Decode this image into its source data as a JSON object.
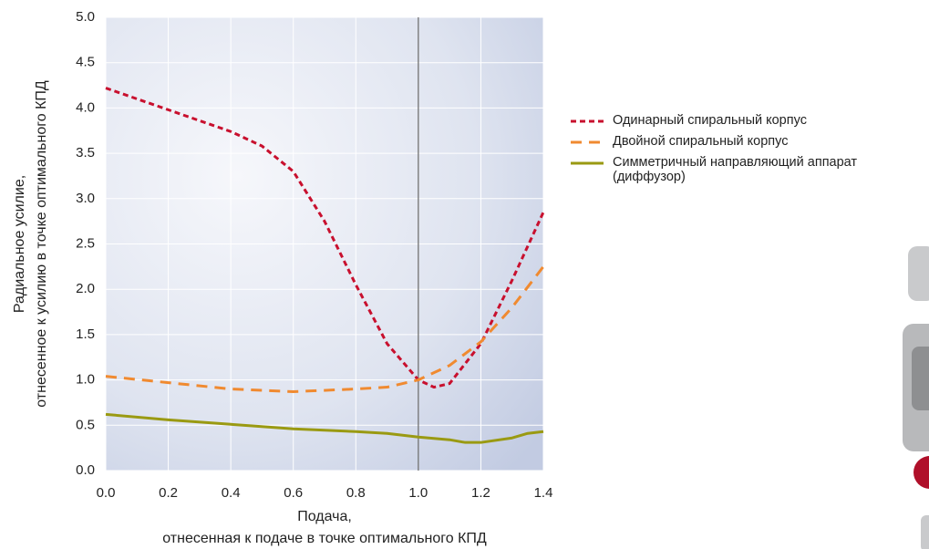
{
  "chart_data": {
    "type": "line",
    "ylabel": [
      "Радиальное усилие,",
      "отнесенное к усилию в точке оптимального КПД"
    ],
    "xlabel": [
      "Подача,",
      "отнесенная к подаче в точке оптимального КПД"
    ],
    "xlim": [
      0,
      1.4
    ],
    "xticks": [
      {
        "value": 0,
        "label": "0.0"
      },
      0.2,
      0.4,
      0.6,
      0.8,
      {
        "value": 1,
        "label": "1.0"
      },
      1.2,
      1.4
    ],
    "ylim": [
      0,
      5
    ],
    "yticks": [
      {
        "value": 0,
        "label": "0.0"
      },
      0.5,
      {
        "value": 1,
        "label": "1.0"
      },
      1.5,
      {
        "value": 2,
        "label": "2.0"
      },
      2.5,
      {
        "value": 3,
        "label": "3.0"
      },
      3.5,
      {
        "value": 4,
        "label": "4.0"
      },
      4.5,
      {
        "value": 5,
        "label": "5.0"
      }
    ],
    "grid": true,
    "vline": 1,
    "legend": "right",
    "series": [
      {
        "name": "Одинарный спиральный корпус",
        "color": "#c8102e",
        "dash": "6,4",
        "x": [
          0,
          0.1,
          0.2,
          0.3,
          0.4,
          0.5,
          0.6,
          0.7,
          0.8,
          0.9,
          1.0,
          1.05,
          1.1,
          1.2,
          1.3,
          1.4
        ],
        "values": [
          4.22,
          4.1,
          3.98,
          3.86,
          3.74,
          3.58,
          3.3,
          2.75,
          2.05,
          1.4,
          1.0,
          0.92,
          0.96,
          1.4,
          2.1,
          2.85
        ]
      },
      {
        "name": "Двойной спиральный корпус",
        "color": "#f08a30",
        "dash": "12,8",
        "x": [
          0,
          0.2,
          0.4,
          0.6,
          0.8,
          0.9,
          1.0,
          1.1,
          1.2,
          1.3,
          1.4
        ],
        "values": [
          1.04,
          0.97,
          0.9,
          0.87,
          0.9,
          0.92,
          1.0,
          1.16,
          1.42,
          1.8,
          2.25
        ]
      },
      {
        "name": "Симметричный направляющий аппарат (диффузор)",
        "color": "#9a9a12",
        "dash": "none",
        "x": [
          0,
          0.2,
          0.4,
          0.6,
          0.8,
          0.9,
          1.0,
          1.1,
          1.15,
          1.2,
          1.3,
          1.35,
          1.4
        ],
        "values": [
          0.62,
          0.56,
          0.51,
          0.46,
          0.43,
          0.41,
          0.37,
          0.34,
          0.31,
          0.31,
          0.36,
          0.41,
          0.43
        ]
      }
    ]
  }
}
